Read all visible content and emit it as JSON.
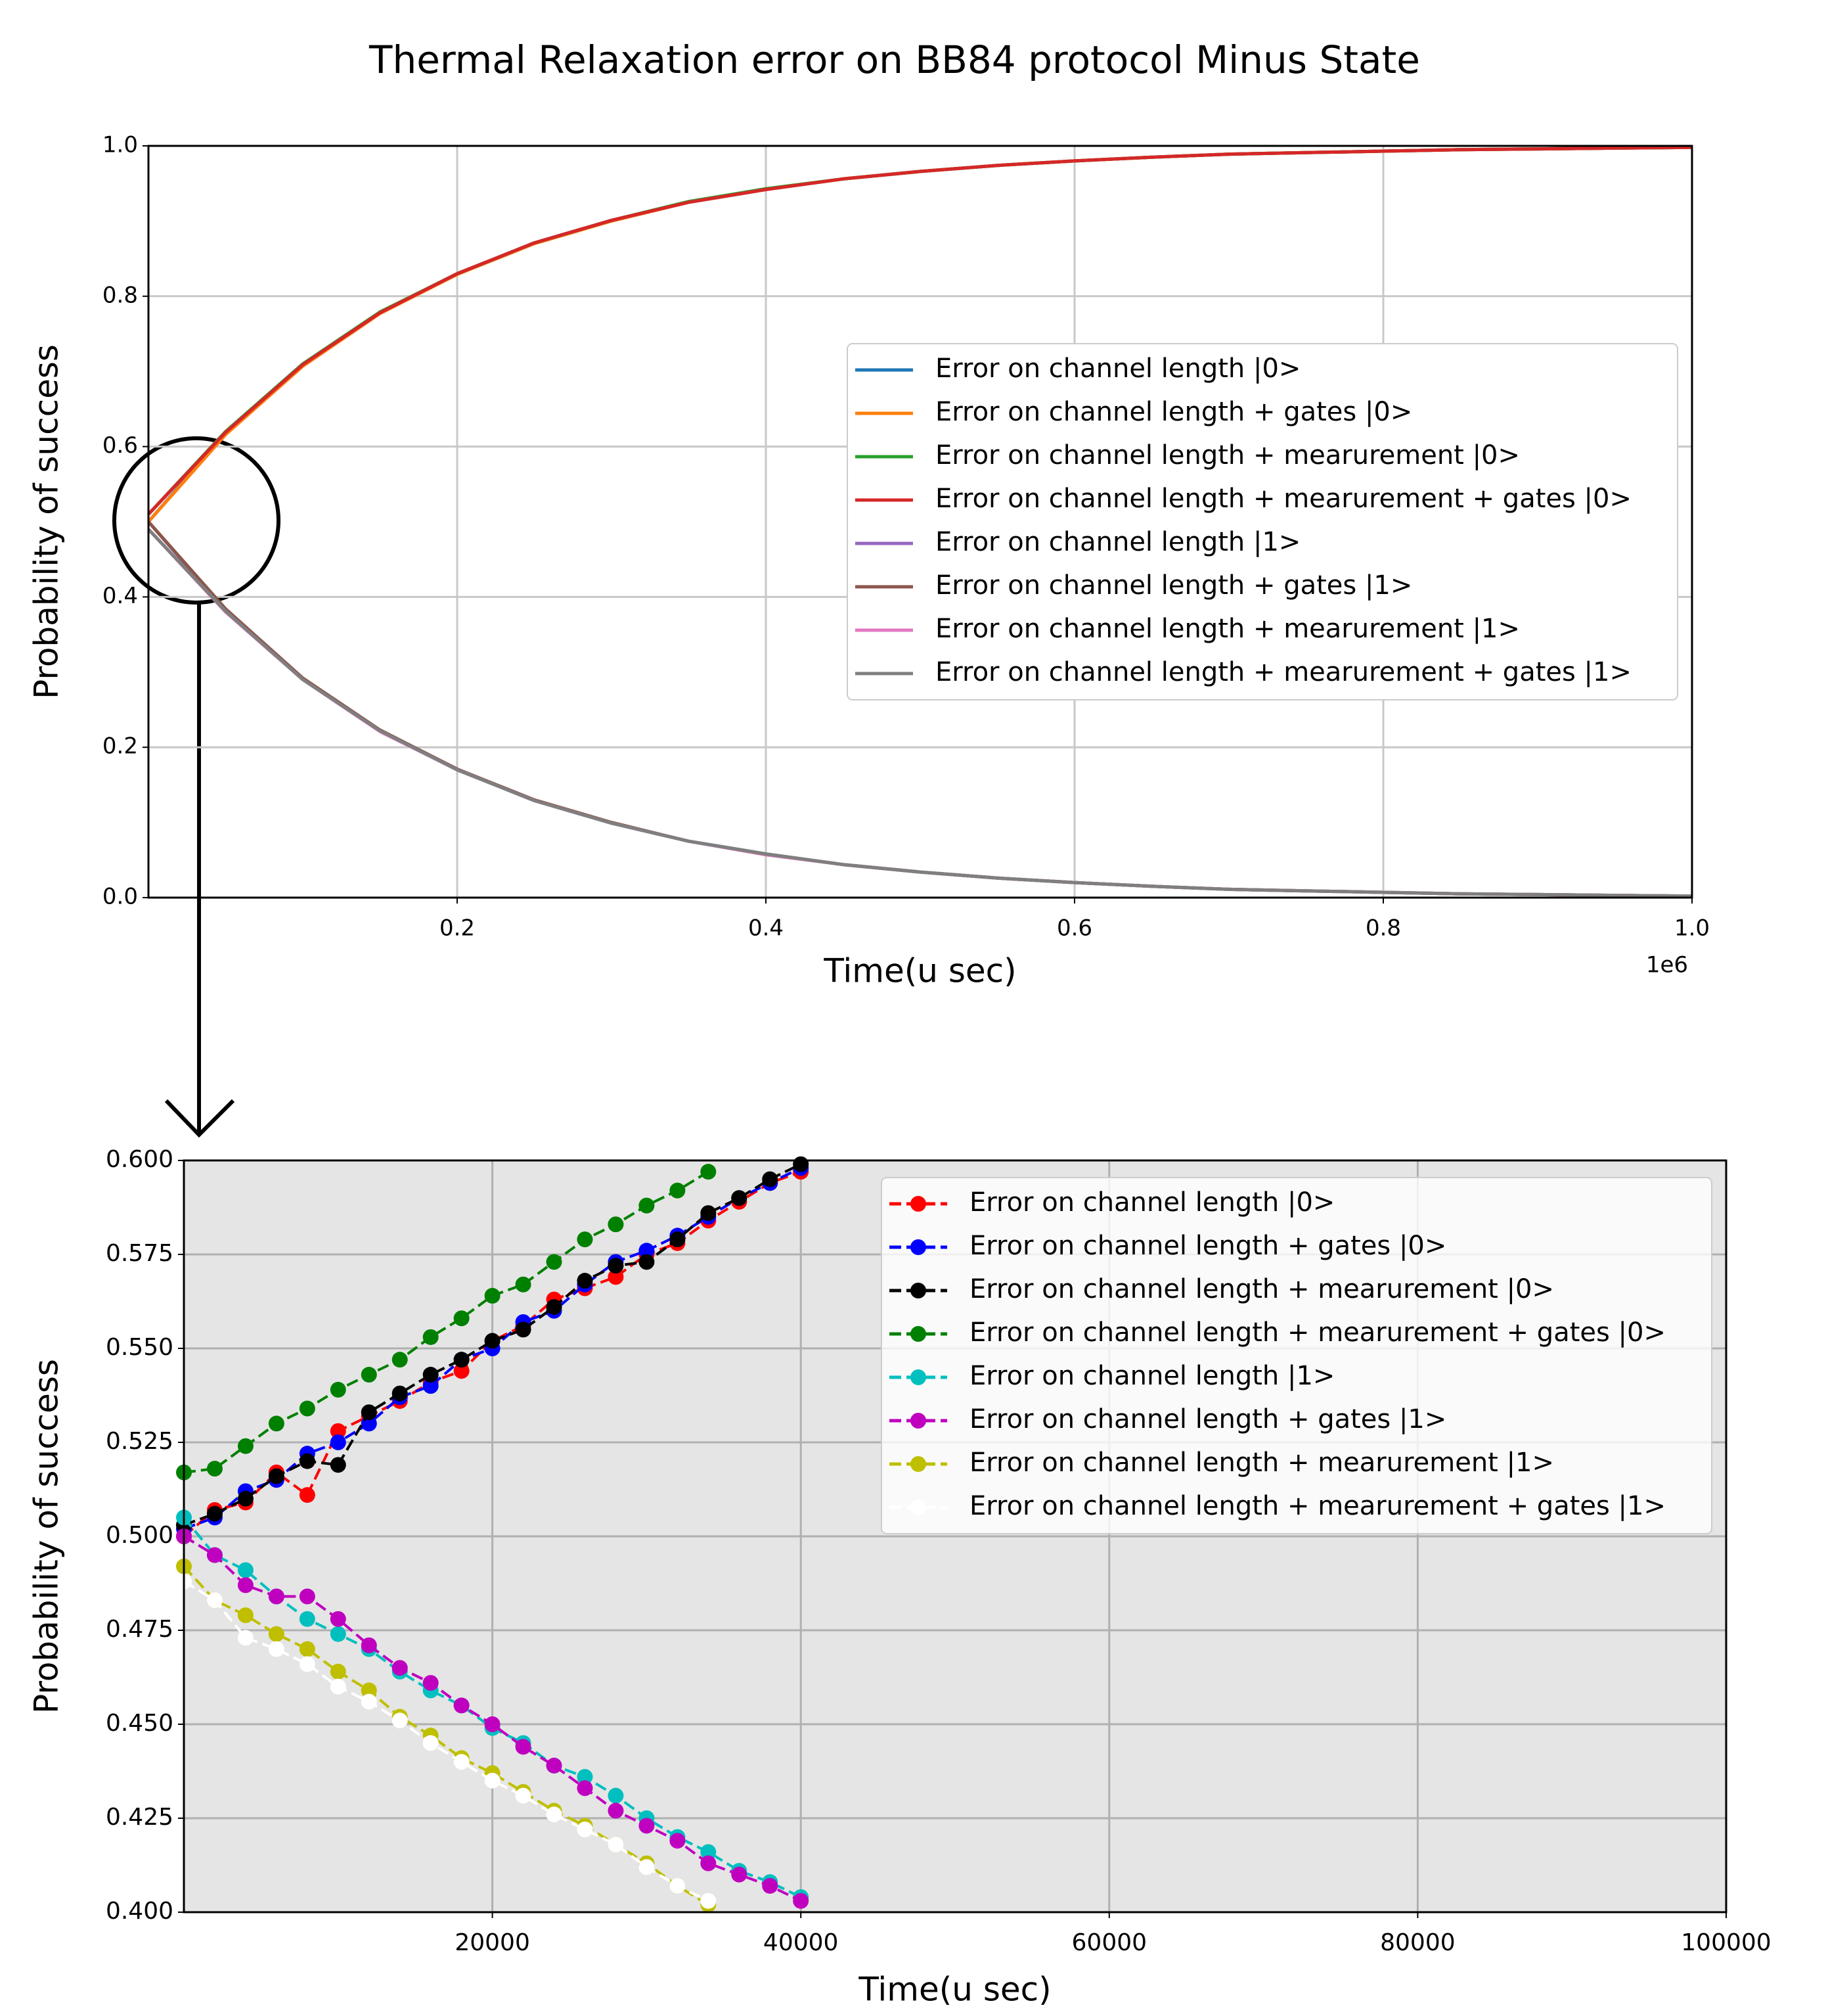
{
  "chart_data": [
    {
      "type": "line",
      "title": "Thermal Relaxation error on BB84 protocol Minus State",
      "x_label": "Time(u sec)",
      "y_label": "Probability of success",
      "x_offset_label": "1e6",
      "x": [
        0,
        0.05,
        0.1,
        0.15,
        0.2,
        0.25,
        0.3,
        0.35,
        0.4,
        0.45,
        0.5,
        0.55,
        0.6,
        0.65,
        0.7,
        0.75,
        0.8,
        0.85,
        0.9,
        0.95,
        1
      ],
      "xlim": [
        0,
        1
      ],
      "ylim": [
        0,
        1
      ],
      "xticks": [
        0.2,
        0.4,
        0.6,
        0.8,
        {
          "value": 1,
          "label": "1.0"
        }
      ],
      "yticks": [
        {
          "value": 0,
          "label": "0.0"
        },
        0.2,
        0.4,
        0.6,
        0.8,
        {
          "value": 1,
          "label": "1.0"
        }
      ],
      "grid": true,
      "legend": "center right",
      "marker": false,
      "linestyle": "solid",
      "series": [
        {
          "name": "Error on channel length |0>",
          "color": "#1f77b4",
          "values": [
            0.5,
            0.618,
            0.709,
            0.778,
            0.83,
            0.871,
            0.901,
            0.925,
            0.942,
            0.956,
            0.966,
            0.974,
            0.98,
            0.985,
            0.989,
            0.991,
            0.993,
            0.995,
            0.996,
            0.997,
            0.998
          ]
        },
        {
          "name": "Error on channel length + gates |0>",
          "color": "#ff7f0e",
          "values": [
            0.5,
            0.616,
            0.707,
            0.777,
            0.829,
            0.87,
            0.9,
            0.925,
            0.942,
            0.956,
            0.966,
            0.974,
            0.98,
            0.985,
            0.989,
            0.991,
            0.993,
            0.995,
            0.996,
            0.997,
            0.998
          ]
        },
        {
          "name": "Error on channel length + mearurement |0>",
          "color": "#2ca02c",
          "values": [
            0.51,
            0.62,
            0.71,
            0.779,
            0.83,
            0.871,
            0.901,
            0.926,
            0.943,
            0.956,
            0.966,
            0.974,
            0.98,
            0.985,
            0.989,
            0.991,
            0.993,
            0.995,
            0.996,
            0.997,
            0.998
          ]
        },
        {
          "name": "Error on channel length + mearurement + gates |0>",
          "color": "#d62728",
          "values": [
            0.51,
            0.619,
            0.709,
            0.778,
            0.83,
            0.871,
            0.901,
            0.925,
            0.942,
            0.956,
            0.966,
            0.974,
            0.98,
            0.985,
            0.989,
            0.991,
            0.993,
            0.995,
            0.996,
            0.997,
            0.998
          ]
        },
        {
          "name": "Error on channel length |1>",
          "color": "#9467bd",
          "values": [
            0.5,
            0.382,
            0.291,
            0.222,
            0.17,
            0.129,
            0.099,
            0.075,
            0.058,
            0.044,
            0.034,
            0.026,
            0.02,
            0.015,
            0.011,
            0.009,
            0.007,
            0.005,
            0.004,
            0.003,
            0.002
          ]
        },
        {
          "name": "Error on channel length + gates |1>",
          "color": "#8c564b",
          "values": [
            0.5,
            0.384,
            0.292,
            0.223,
            0.171,
            0.13,
            0.1,
            0.075,
            0.058,
            0.044,
            0.034,
            0.026,
            0.02,
            0.015,
            0.011,
            0.009,
            0.007,
            0.005,
            0.004,
            0.003,
            0.002
          ]
        },
        {
          "name": "Error on channel length + mearurement |1>",
          "color": "#e377c2",
          "values": [
            0.49,
            0.38,
            0.29,
            0.221,
            0.17,
            0.129,
            0.099,
            0.075,
            0.057,
            0.044,
            0.034,
            0.026,
            0.02,
            0.015,
            0.011,
            0.009,
            0.007,
            0.005,
            0.004,
            0.003,
            0.002
          ]
        },
        {
          "name": "Error on channel length + mearurement + gates |1>",
          "color": "#7f7f7f",
          "values": [
            0.49,
            0.381,
            0.29,
            0.222,
            0.17,
            0.129,
            0.099,
            0.075,
            0.058,
            0.044,
            0.034,
            0.026,
            0.02,
            0.015,
            0.011,
            0.009,
            0.007,
            0.005,
            0.004,
            0.003,
            0.002
          ]
        }
      ]
    },
    {
      "type": "line",
      "x_label": "Time(u sec)",
      "y_label": "Probability of success",
      "x": [
        0,
        2000,
        4000,
        6000,
        8000,
        10000,
        12000,
        14000,
        16000,
        18000,
        20000,
        22000,
        24000,
        26000,
        28000,
        30000,
        32000,
        34000,
        36000,
        38000,
        40000
      ],
      "xlim": [
        0,
        100000
      ],
      "ylim": [
        0.4,
        0.6
      ],
      "xticks": [
        20000,
        40000,
        60000,
        80000,
        100000
      ],
      "yticks": [
        {
          "value": 0.4,
          "label": "0.400"
        },
        {
          "value": 0.425,
          "label": "0.425"
        },
        {
          "value": 0.45,
          "label": "0.450"
        },
        {
          "value": 0.475,
          "label": "0.475"
        },
        {
          "value": 0.5,
          "label": "0.500"
        },
        {
          "value": 0.525,
          "label": "0.525"
        },
        {
          "value": 0.55,
          "label": "0.550"
        },
        {
          "value": 0.575,
          "label": "0.575"
        },
        {
          "value": 0.6,
          "label": "0.600"
        }
      ],
      "grid": true,
      "background": "#e5e5e5",
      "legend": "upper right",
      "marker": true,
      "linestyle": "dashed",
      "series": [
        {
          "name": "Error on channel length |0>",
          "color": "#ff0000",
          "values": [
            0.5,
            0.507,
            0.509,
            0.517,
            0.511,
            0.528,
            0.532,
            0.536,
            0.541,
            0.544,
            0.552,
            0.556,
            0.563,
            0.566,
            0.569,
            0.575,
            0.578,
            0.584,
            0.589,
            0.594,
            0.597
          ]
        },
        {
          "name": "Error on channel length + gates |0>",
          "color": "#0000ff",
          "values": [
            0.502,
            0.505,
            0.512,
            0.515,
            0.522,
            0.525,
            0.53,
            0.537,
            0.54,
            0.547,
            0.55,
            0.557,
            0.56,
            0.567,
            0.573,
            0.576,
            0.58,
            0.585,
            0.59,
            0.594,
            0.598
          ]
        },
        {
          "name": "Error on channel length + mearurement |0>",
          "color": "#000000",
          "values": [
            0.503,
            0.506,
            0.51,
            0.516,
            0.52,
            0.519,
            0.533,
            0.538,
            0.543,
            0.547,
            0.552,
            0.555,
            0.561,
            0.568,
            0.572,
            0.573,
            0.579,
            0.586,
            0.59,
            0.595,
            0.599
          ]
        },
        {
          "name": "Error on channel length + mearurement + gates |0>",
          "color": "#008000",
          "values": [
            0.517,
            0.518,
            0.524,
            0.53,
            0.534,
            0.539,
            0.543,
            0.547,
            0.553,
            0.558,
            0.564,
            0.567,
            0.573,
            0.579,
            0.583,
            0.588,
            0.592,
            0.597,
            null,
            null,
            null
          ]
        },
        {
          "name": "Error on channel length |1>",
          "color": "#00bfbf",
          "values": [
            0.505,
            0.495,
            0.491,
            0.484,
            0.478,
            0.474,
            0.47,
            0.464,
            0.459,
            0.455,
            0.449,
            0.445,
            0.439,
            0.436,
            0.431,
            0.425,
            0.42,
            0.416,
            0.411,
            0.408,
            0.404
          ]
        },
        {
          "name": "Error on channel length + gates |1>",
          "color": "#bf00bf",
          "values": [
            0.5,
            0.495,
            0.487,
            0.484,
            0.484,
            0.478,
            0.471,
            0.465,
            0.461,
            0.455,
            0.45,
            0.444,
            0.439,
            0.433,
            0.427,
            0.423,
            0.419,
            0.413,
            0.41,
            0.407,
            0.403
          ]
        },
        {
          "name": "Error on channel length + mearurement |1>",
          "color": "#bfbf00",
          "values": [
            0.492,
            0.483,
            0.479,
            0.474,
            0.47,
            0.464,
            0.459,
            0.452,
            0.447,
            0.441,
            0.437,
            0.432,
            0.427,
            0.423,
            0.418,
            0.413,
            0.407,
            0.402,
            null,
            null,
            null
          ]
        },
        {
          "name": "Error on channel length + mearurement + gates |1>",
          "color": "#ffffff",
          "values": [
            0.488,
            0.483,
            0.473,
            0.47,
            0.466,
            0.46,
            0.456,
            0.451,
            0.445,
            0.44,
            0.435,
            0.431,
            0.426,
            0.422,
            0.418,
            0.412,
            0.407,
            0.403,
            null,
            null,
            null
          ]
        }
      ]
    }
  ]
}
